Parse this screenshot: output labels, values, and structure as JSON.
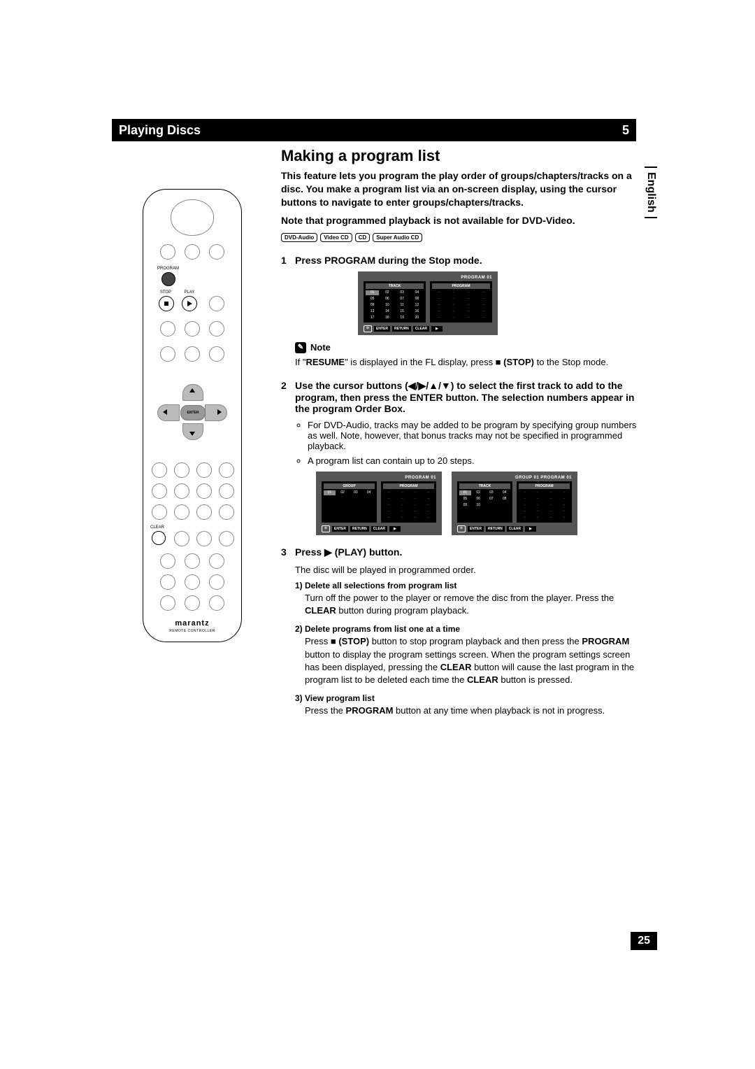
{
  "header": {
    "title": "Playing Discs",
    "chapter": "5"
  },
  "language": "English",
  "pageNumber": "25",
  "section": {
    "title": "Making a program list",
    "intro": "This feature lets you program the play order of groups/chapters/tracks on a disc. You make a program list via an on-screen display, using the cursor buttons to navigate to enter groups/chapters/tracks.",
    "noteLine": "Note that programmed playback is not available for DVD-Video."
  },
  "badges": [
    "DVD-Audio",
    "Video CD",
    "CD",
    "Super Audio CD"
  ],
  "steps": {
    "s1": {
      "title": "Press PROGRAM during the Stop mode."
    },
    "s2": {
      "title": "Use the cursor buttons (◀/▶/▲/▼) to select the first track to add to the program, then press the ENTER button. The selection numbers appear in the program Order Box.",
      "b1": "For DVD-Audio, tracks may be added to be program by specifying group numbers as well. Note, however, that bonus tracks may not be specified in programmed playback.",
      "b2": "A program list can contain up to 20 steps."
    },
    "s3": {
      "title": "Press ▶ (PLAY) button.",
      "body": "The disc will be played in programmed order.",
      "sub1t": "1) Delete all selections from program list",
      "sub1b": "Turn off the power to the player or remove the disc from the player. Press the CLEAR button during program playback.",
      "sub2t": "2) Delete programs from list one at a time",
      "sub2b": "Press ■ (STOP) button to stop program playback and then press the PROGRAM button to display the program settings screen. When the program settings screen has been displayed, pressing the CLEAR button will cause the last program in the program list to be deleted each time the CLEAR button is pressed.",
      "sub3t": "3) View program list",
      "sub3b": "Press the PROGRAM button at any time when playback is not in progress."
    }
  },
  "note": {
    "label": "Note",
    "text": "If \"RESUME\" is displayed in the FL display, press ■ (STOP) to the Stop mode."
  },
  "osd": {
    "programLabel": "PROGRAM 01",
    "groupProgramLabel": "GROUP 01 PROGRAM 01",
    "trackHead": "TRACK",
    "groupHead": "GROUP",
    "programHead": "PROGRAM",
    "footer": {
      "enter": "ENTER",
      "return": "RETURN",
      "clear": "CLEAR",
      "play": "▶"
    },
    "tracks20": [
      "01",
      "02",
      "03",
      "04",
      "05",
      "06",
      "07",
      "08",
      "09",
      "10",
      "11",
      "12",
      "13",
      "14",
      "15",
      "16",
      "17",
      "18",
      "19",
      "20"
    ],
    "tracks10": [
      "01",
      "02",
      "03",
      "04",
      "05",
      "06",
      "07",
      "08",
      "09",
      "10"
    ],
    "groups4": [
      "01",
      "02",
      "03",
      "04"
    ]
  },
  "remote": {
    "programLbl": "PROGRAM",
    "stopLbl": "STOP",
    "playLbl": "PLAY",
    "clearLbl": "CLEAR",
    "enterLbl": "ENTER",
    "brand": "marantz",
    "brandSub": "REMOTE CONTROLLER"
  },
  "colors": {
    "black": "#000000",
    "white": "#ffffff",
    "osdBg": "#555555",
    "osdPanelBg": "#000000",
    "remoteGrey": "#bbbbbb"
  }
}
